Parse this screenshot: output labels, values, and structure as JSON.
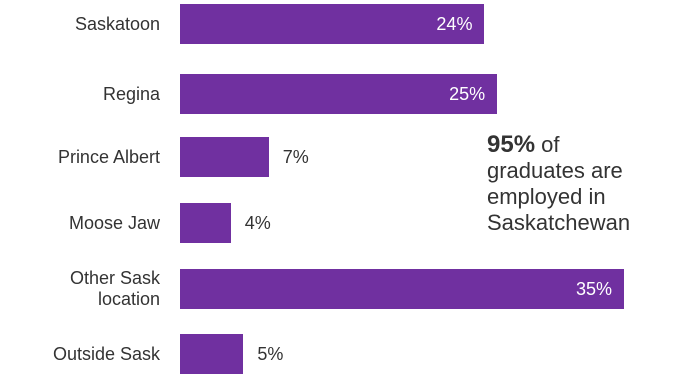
{
  "chart_data": {
    "type": "bar",
    "orientation": "horizontal",
    "categories": [
      "Saskatoon",
      "Regina",
      "Prince Albert",
      "Moose Jaw",
      "Other Sask location",
      "Outside Sask"
    ],
    "category_lines": [
      [
        "Saskatoon"
      ],
      [
        "Regina"
      ],
      [
        "Prince Albert"
      ],
      [
        "Moose Jaw"
      ],
      [
        "Other Sask",
        "location"
      ],
      [
        "Outside Sask"
      ]
    ],
    "values": [
      24,
      25,
      7,
      4,
      35,
      5
    ],
    "value_labels": [
      "24%",
      "25%",
      "7%",
      "4%",
      "35%",
      "5%"
    ],
    "xlim": [
      0,
      35
    ],
    "bar_color": "#7030A0",
    "grid": false,
    "legend": "none"
  },
  "callout": {
    "highlight": "95%",
    "text_1": " of",
    "text_2": "graduates are",
    "text_3": "employed in",
    "text_4": "Saskatchewan"
  }
}
